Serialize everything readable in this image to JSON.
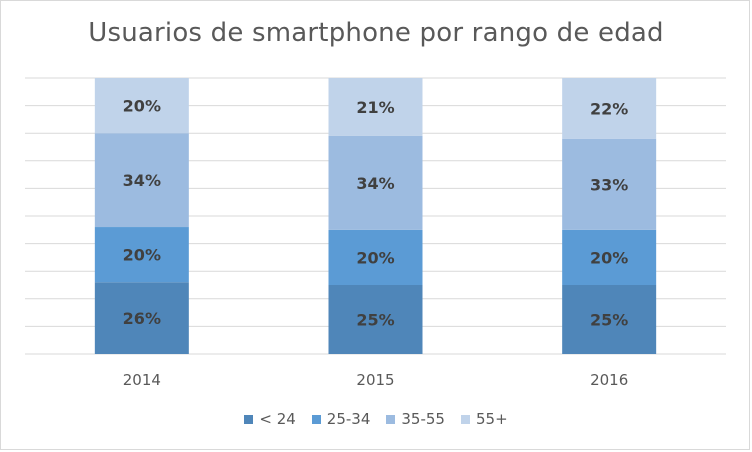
{
  "chart_data": {
    "type": "bar",
    "stacked": true,
    "title": "Usuarios de smartphone por rango de edad",
    "xlabel": "",
    "ylabel": "",
    "categories": [
      "2014",
      "2015",
      "2016"
    ],
    "ylim": [
      0,
      100
    ],
    "grid": true,
    "legend_position": "bottom",
    "series": [
      {
        "name": "< 24",
        "values": [
          26,
          25,
          25
        ],
        "labels": [
          "26%",
          "25%",
          "25%"
        ],
        "color": "#4f86b9"
      },
      {
        "name": "25-34",
        "values": [
          20,
          20,
          20
        ],
        "labels": [
          "20%",
          "20%",
          "20%"
        ],
        "color": "#5b9bd5"
      },
      {
        "name": "35-55",
        "values": [
          34,
          34,
          33
        ],
        "labels": [
          "34%",
          "34%",
          "33%"
        ],
        "color": "#9cbbe0"
      },
      {
        "name": "55+",
        "values": [
          20,
          21,
          22
        ],
        "labels": [
          "20%",
          "21%",
          "22%"
        ],
        "color": "#c0d3ea"
      }
    ]
  }
}
